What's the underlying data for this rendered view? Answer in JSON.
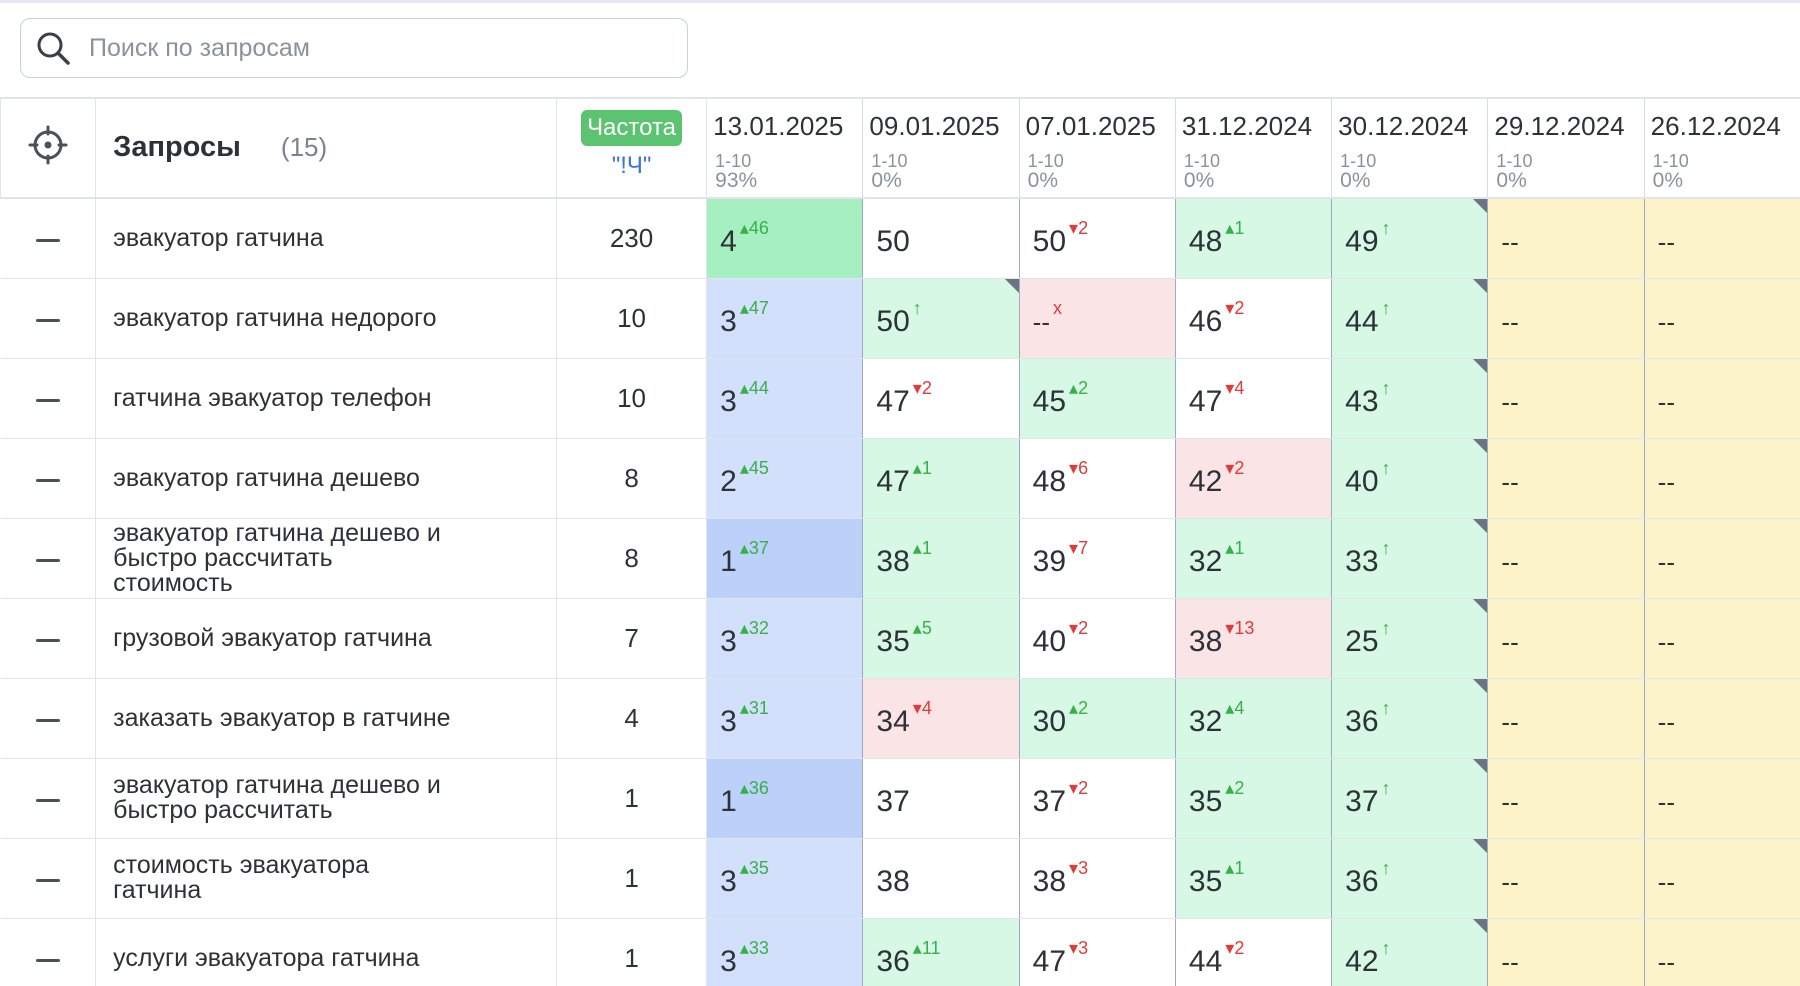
{
  "search": {
    "placeholder": "Поиск по запросам"
  },
  "colors": {
    "top_green": "#a6efc0",
    "blue": "#d3e0fb",
    "blue_dark": "#bcd1f9",
    "green": "#d6f8e4",
    "red": "#fbe4e6",
    "yellow": "#fcf3c9",
    "delta_up": "#38b04a",
    "delta_down": "#e03a3a",
    "badge": "#5cc470"
  },
  "table": {
    "title": "Запросы",
    "count": "(15)",
    "frequency_badge": "Частота",
    "frequency_mode": "\"!Ч\"",
    "columns": [
      {
        "date": "13.01.2025",
        "range": "1-10",
        "pct": "93%"
      },
      {
        "date": "09.01.2025",
        "range": "1-10",
        "pct": "0%"
      },
      {
        "date": "07.01.2025",
        "range": "1-10",
        "pct": "0%"
      },
      {
        "date": "31.12.2024",
        "range": "1-10",
        "pct": "0%"
      },
      {
        "date": "30.12.2024",
        "range": "1-10",
        "pct": "0%"
      },
      {
        "date": "29.12.2024",
        "range": "1-10",
        "pct": "0%"
      },
      {
        "date": "26.12.2024",
        "range": "1-10",
        "pct": "0%"
      }
    ],
    "rows": [
      {
        "query": "эвакуатор гатчина",
        "freq": "230",
        "cells": [
          {
            "v": "4",
            "d": "46",
            "dir": "up",
            "bg": "strong"
          },
          {
            "v": "50",
            "d": "",
            "dir": "",
            "bg": "white"
          },
          {
            "v": "50",
            "d": "2",
            "dir": "down",
            "bg": "white"
          },
          {
            "v": "48",
            "d": "1",
            "dir": "up",
            "bg": "green"
          },
          {
            "v": "49",
            "d": "",
            "dir": "arrow",
            "bg": "green",
            "corner": true
          },
          {
            "v": "--",
            "d": "",
            "dir": "",
            "bg": "yellow"
          },
          {
            "v": "--",
            "d": "",
            "dir": "",
            "bg": "yellow"
          }
        ]
      },
      {
        "query": "эвакуатор гатчина недорого",
        "freq": "10",
        "cells": [
          {
            "v": "3",
            "d": "47",
            "dir": "up",
            "bg": "blue"
          },
          {
            "v": "50",
            "d": "",
            "dir": "arrow",
            "bg": "green",
            "corner": true
          },
          {
            "v": "--",
            "d": "x",
            "dir": "x",
            "bg": "red"
          },
          {
            "v": "46",
            "d": "2",
            "dir": "down",
            "bg": "white"
          },
          {
            "v": "44",
            "d": "",
            "dir": "arrow",
            "bg": "green",
            "corner": true
          },
          {
            "v": "--",
            "d": "",
            "dir": "",
            "bg": "yellow"
          },
          {
            "v": "--",
            "d": "",
            "dir": "",
            "bg": "yellow"
          }
        ]
      },
      {
        "query": "гатчина эвакуатор телефон",
        "freq": "10",
        "cells": [
          {
            "v": "3",
            "d": "44",
            "dir": "up",
            "bg": "blue"
          },
          {
            "v": "47",
            "d": "2",
            "dir": "down",
            "bg": "white"
          },
          {
            "v": "45",
            "d": "2",
            "dir": "up",
            "bg": "green"
          },
          {
            "v": "47",
            "d": "4",
            "dir": "down",
            "bg": "white"
          },
          {
            "v": "43",
            "d": "",
            "dir": "arrow",
            "bg": "green",
            "corner": true
          },
          {
            "v": "--",
            "d": "",
            "dir": "",
            "bg": "yellow"
          },
          {
            "v": "--",
            "d": "",
            "dir": "",
            "bg": "yellow"
          }
        ]
      },
      {
        "query": "эвакуатор гатчина дешево",
        "freq": "8",
        "cells": [
          {
            "v": "2",
            "d": "45",
            "dir": "up",
            "bg": "blue"
          },
          {
            "v": "47",
            "d": "1",
            "dir": "up",
            "bg": "green"
          },
          {
            "v": "48",
            "d": "6",
            "dir": "down",
            "bg": "white"
          },
          {
            "v": "42",
            "d": "2",
            "dir": "down",
            "bg": "red"
          },
          {
            "v": "40",
            "d": "",
            "dir": "arrow",
            "bg": "green",
            "corner": true
          },
          {
            "v": "--",
            "d": "",
            "dir": "",
            "bg": "yellow"
          },
          {
            "v": "--",
            "d": "",
            "dir": "",
            "bg": "yellow"
          }
        ]
      },
      {
        "query": "эвакуатор гатчина дешево и быстро рассчитать стоимость",
        "freq": "8",
        "cells": [
          {
            "v": "1",
            "d": "37",
            "dir": "up",
            "bg": "blue2"
          },
          {
            "v": "38",
            "d": "1",
            "dir": "up",
            "bg": "green"
          },
          {
            "v": "39",
            "d": "7",
            "dir": "down",
            "bg": "white"
          },
          {
            "v": "32",
            "d": "1",
            "dir": "up",
            "bg": "green"
          },
          {
            "v": "33",
            "d": "",
            "dir": "arrow",
            "bg": "green",
            "corner": true
          },
          {
            "v": "--",
            "d": "",
            "dir": "",
            "bg": "yellow"
          },
          {
            "v": "--",
            "d": "",
            "dir": "",
            "bg": "yellow"
          }
        ]
      },
      {
        "query": "грузовой эвакуатор гатчина",
        "freq": "7",
        "cells": [
          {
            "v": "3",
            "d": "32",
            "dir": "up",
            "bg": "blue"
          },
          {
            "v": "35",
            "d": "5",
            "dir": "up",
            "bg": "green"
          },
          {
            "v": "40",
            "d": "2",
            "dir": "down",
            "bg": "white"
          },
          {
            "v": "38",
            "d": "13",
            "dir": "down",
            "bg": "red"
          },
          {
            "v": "25",
            "d": "",
            "dir": "arrow",
            "bg": "green",
            "corner": true
          },
          {
            "v": "--",
            "d": "",
            "dir": "",
            "bg": "yellow"
          },
          {
            "v": "--",
            "d": "",
            "dir": "",
            "bg": "yellow"
          }
        ]
      },
      {
        "query": "заказать эвакуатор в гатчине",
        "freq": "4",
        "cells": [
          {
            "v": "3",
            "d": "31",
            "dir": "up",
            "bg": "blue"
          },
          {
            "v": "34",
            "d": "4",
            "dir": "down",
            "bg": "red"
          },
          {
            "v": "30",
            "d": "2",
            "dir": "up",
            "bg": "green"
          },
          {
            "v": "32",
            "d": "4",
            "dir": "up",
            "bg": "green"
          },
          {
            "v": "36",
            "d": "",
            "dir": "arrow",
            "bg": "green",
            "corner": true
          },
          {
            "v": "--",
            "d": "",
            "dir": "",
            "bg": "yellow"
          },
          {
            "v": "--",
            "d": "",
            "dir": "",
            "bg": "yellow"
          }
        ]
      },
      {
        "query": "эвакуатор гатчина дешево и быстро рассчитать",
        "freq": "1",
        "cells": [
          {
            "v": "1",
            "d": "36",
            "dir": "up",
            "bg": "blue2"
          },
          {
            "v": "37",
            "d": "",
            "dir": "",
            "bg": "white"
          },
          {
            "v": "37",
            "d": "2",
            "dir": "down",
            "bg": "white"
          },
          {
            "v": "35",
            "d": "2",
            "dir": "up",
            "bg": "green"
          },
          {
            "v": "37",
            "d": "",
            "dir": "arrow",
            "bg": "green",
            "corner": true
          },
          {
            "v": "--",
            "d": "",
            "dir": "",
            "bg": "yellow"
          },
          {
            "v": "--",
            "d": "",
            "dir": "",
            "bg": "yellow"
          }
        ]
      },
      {
        "query": "стоимость эвакуатора гатчина",
        "freq": "1",
        "cells": [
          {
            "v": "3",
            "d": "35",
            "dir": "up",
            "bg": "blue"
          },
          {
            "v": "38",
            "d": "",
            "dir": "",
            "bg": "white"
          },
          {
            "v": "38",
            "d": "3",
            "dir": "down",
            "bg": "white"
          },
          {
            "v": "35",
            "d": "1",
            "dir": "up",
            "bg": "green"
          },
          {
            "v": "36",
            "d": "",
            "dir": "arrow",
            "bg": "green",
            "corner": true
          },
          {
            "v": "--",
            "d": "",
            "dir": "",
            "bg": "yellow"
          },
          {
            "v": "--",
            "d": "",
            "dir": "",
            "bg": "yellow"
          }
        ]
      },
      {
        "query": "услуги эвакуатора гатчина",
        "freq": "1",
        "cells": [
          {
            "v": "3",
            "d": "33",
            "dir": "up",
            "bg": "blue"
          },
          {
            "v": "36",
            "d": "11",
            "dir": "up",
            "bg": "green"
          },
          {
            "v": "47",
            "d": "3",
            "dir": "down",
            "bg": "white"
          },
          {
            "v": "44",
            "d": "2",
            "dir": "down",
            "bg": "white"
          },
          {
            "v": "42",
            "d": "",
            "dir": "arrow",
            "bg": "green",
            "corner": true
          },
          {
            "v": "--",
            "d": "",
            "dir": "",
            "bg": "yellow"
          },
          {
            "v": "--",
            "d": "",
            "dir": "",
            "bg": "yellow"
          }
        ]
      }
    ]
  }
}
